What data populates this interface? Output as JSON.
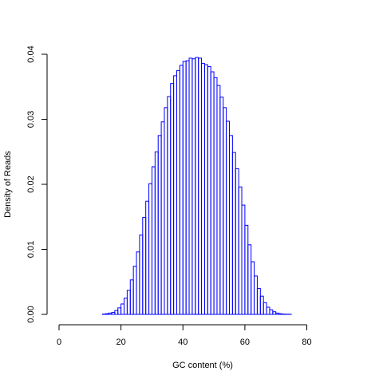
{
  "chart_data": {
    "type": "bar",
    "title": "",
    "xlabel": "GC content (%)",
    "ylabel": "Density of Reads",
    "xlim": [
      0,
      93
    ],
    "ylim": [
      0,
      0.04
    ],
    "x_ticks": [
      "0",
      "20",
      "40",
      "60",
      "80"
    ],
    "x_tick_values": [
      0,
      20,
      40,
      60,
      80
    ],
    "y_ticks": [
      "0.00",
      "0.01",
      "0.02",
      "0.03",
      "0.04"
    ],
    "y_tick_values": [
      0,
      0.01,
      0.02,
      0.03,
      0.04
    ],
    "grid": false,
    "bar_color": "#0000ff",
    "bin_width": 1,
    "x": [
      0,
      1,
      2,
      3,
      4,
      5,
      6,
      7,
      8,
      9,
      10,
      11,
      12,
      13,
      14,
      15,
      16,
      17,
      18,
      19,
      20,
      21,
      22,
      23,
      24,
      25,
      26,
      27,
      28,
      29,
      30,
      31,
      32,
      33,
      34,
      35,
      36,
      37,
      38,
      39,
      40,
      41,
      42,
      43,
      44,
      45,
      46,
      47,
      48,
      49,
      50,
      51,
      52,
      53,
      54,
      55,
      56,
      57,
      58,
      59,
      60,
      61,
      62,
      63,
      64,
      65,
      66,
      67,
      68,
      69,
      70,
      71,
      72,
      73,
      74,
      75,
      76,
      77,
      78,
      79,
      80,
      81,
      82,
      83,
      84,
      85,
      86,
      87,
      88,
      89,
      90,
      91,
      92
    ],
    "values": [
      0,
      0,
      0,
      0,
      0,
      0,
      0,
      0,
      0,
      0,
      0,
      0,
      0,
      0,
      5e-05,
      0.0001,
      0.0002,
      0.0003,
      0.0006,
      0.001,
      0.0016,
      0.0025,
      0.0037,
      0.0053,
      0.0074,
      0.0096,
      0.0122,
      0.0149,
      0.0174,
      0.0201,
      0.0227,
      0.025,
      0.0275,
      0.0296,
      0.0318,
      0.0335,
      0.0355,
      0.0367,
      0.0375,
      0.0383,
      0.0389,
      0.039,
      0.0394,
      0.0393,
      0.0395,
      0.0394,
      0.0386,
      0.0384,
      0.0381,
      0.0373,
      0.0364,
      0.0352,
      0.0334,
      0.0318,
      0.0297,
      0.0275,
      0.0249,
      0.0224,
      0.0196,
      0.0168,
      0.0137,
      0.0107,
      0.0081,
      0.0059,
      0.004,
      0.0028,
      0.0018,
      0.0011,
      0.0007,
      0.0004,
      0.0002,
      0.0001,
      5e-05,
      3e-05,
      2e-05,
      0,
      0,
      0,
      0,
      0,
      0,
      0,
      0,
      0,
      0,
      0,
      0,
      0,
      0,
      0,
      0,
      0,
      0
    ]
  }
}
